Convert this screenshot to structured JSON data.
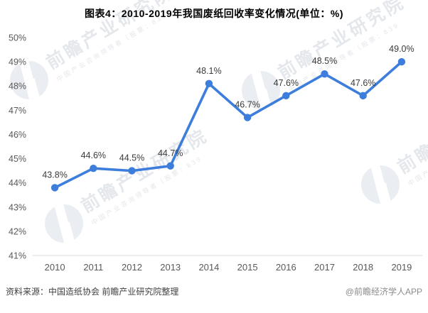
{
  "title": "图表4：2010-2019年我国废纸回收率变化情况(单位：%)",
  "footer": {
    "source": "资料来源：中国造纸协会 前瞻产业研究院整理",
    "credit": "@前瞻经济学人APP"
  },
  "watermark": {
    "brand": "前瞻产业研究院",
    "tagline": "中国产业咨询领导者（股票：839"
  },
  "colors": {
    "line": "#3D7DDB",
    "marker": "#3D7DDB",
    "axis_line": "#D9D9D9",
    "tick_text": "#595959",
    "data_label_text": "#3a3a3a",
    "watermark": "#E4E7EB"
  },
  "chart_data": {
    "type": "line",
    "title": "图表4：2010-2019年我国废纸回收率变化情况(单位：%)",
    "categories": [
      "2010",
      "2011",
      "2012",
      "2013",
      "2014",
      "2015",
      "2016",
      "2017",
      "2018",
      "2019"
    ],
    "values": [
      43.8,
      44.6,
      44.5,
      44.7,
      48.1,
      46.7,
      47.6,
      48.5,
      47.6,
      49.0
    ],
    "point_labels": [
      "43.8%",
      "44.6%",
      "44.5%",
      "44.7%",
      "48.1%",
      "46.7%",
      "47.6%",
      "48.5%",
      "47.6%",
      "49.0%"
    ],
    "xlabel": "",
    "ylabel": "",
    "ylim": [
      41,
      50
    ],
    "ytick_step": 1,
    "ytick_suffix": "%",
    "grid": false,
    "legend": null,
    "marker": "circle",
    "data_labels_shown": true
  }
}
